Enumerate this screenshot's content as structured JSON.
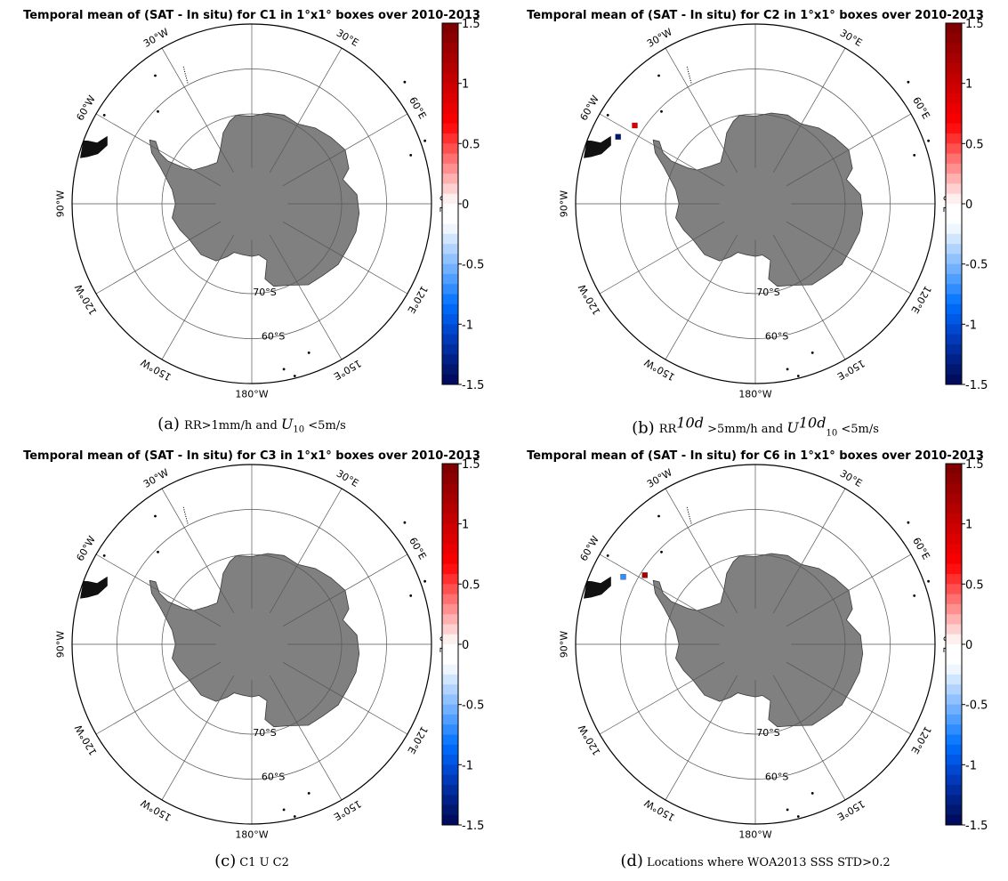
{
  "panels": [
    {
      "id": "a",
      "title": "Temporal mean of (SAT - In situ) for C1 in 1°x1° boxes over 2010-2013",
      "caption_label": "(a)",
      "caption_text": "",
      "markers": []
    },
    {
      "id": "b",
      "title": "Temporal mean of (SAT - In situ) for C2 in 1°x1° boxes over 2010-2013",
      "caption_label": "(b)",
      "caption_text": "",
      "markers": [
        {
          "lat": -58,
          "lon": -57,
          "value": 0.9
        },
        {
          "lat": -56,
          "lon": -64,
          "value": -1.4
        }
      ]
    },
    {
      "id": "c",
      "title": "Temporal mean of (SAT - In situ) for C3 in 1°x1° boxes over 2010-2013",
      "caption_label": "(c)",
      "caption_text": "C1 U C2",
      "markers": []
    },
    {
      "id": "d",
      "title": "Temporal mean of (SAT - In situ) for C6 in 1°x1° boxes over 2010-2013",
      "caption_label": "(d)",
      "caption_text": "Locations where WOA2013 SSS STD>0.2",
      "markers": [
        {
          "lat": -57,
          "lon": -63,
          "value": -0.7
        },
        {
          "lat": -61,
          "lon": -58,
          "value": 1.2
        }
      ]
    }
  ],
  "caption_a": {
    "p1": "RR>1mm/h and",
    "var": "U",
    "sub": "10",
    "p2": "<5m/s"
  },
  "caption_b": {
    "p1": "RR",
    "sup1": "10d",
    "p2": ">5mm/h and",
    "var": "U",
    "sup2": "10d",
    "sub": "10",
    "p3": "<5m/s"
  },
  "longitude_labels": [
    "30°E",
    "60°E",
    "0°E",
    "120°E",
    "150°E",
    "180°W",
    "150°W",
    "120°W",
    "90°W",
    "60°W",
    "30°W"
  ],
  "latitude_labels": [
    "70°S",
    "60°S"
  ],
  "colorbar": {
    "min": -1.5,
    "max": 1.5,
    "ticks": [
      "1.5",
      "1",
      "0.5",
      "0",
      "-0.5",
      "-1",
      "-1.5"
    ],
    "colors_top_to_bottom": [
      "#800000",
      "#8d0000",
      "#9a0000",
      "#a70000",
      "#b50000",
      "#c20000",
      "#d00000",
      "#dd0000",
      "#ea0000",
      "#f70000",
      "#ff1010",
      "#ff3030",
      "#ff5050",
      "#ff7070",
      "#ff9090",
      "#ffb0b0",
      "#ffd0d0",
      "#fff0f0",
      "#ffffff",
      "#ffffff",
      "#f0f6ff",
      "#d0e6ff",
      "#b0d4ff",
      "#90c2ff",
      "#70b0ff",
      "#509eff",
      "#308cff",
      "#107aff",
      "#0068f7",
      "#0058e6",
      "#0048d0",
      "#003ab8",
      "#002ea0",
      "#002288",
      "#001870",
      "#000c60"
    ]
  },
  "colors": {
    "land": "#808080",
    "frame": "#000000",
    "grid": "#555555"
  }
}
